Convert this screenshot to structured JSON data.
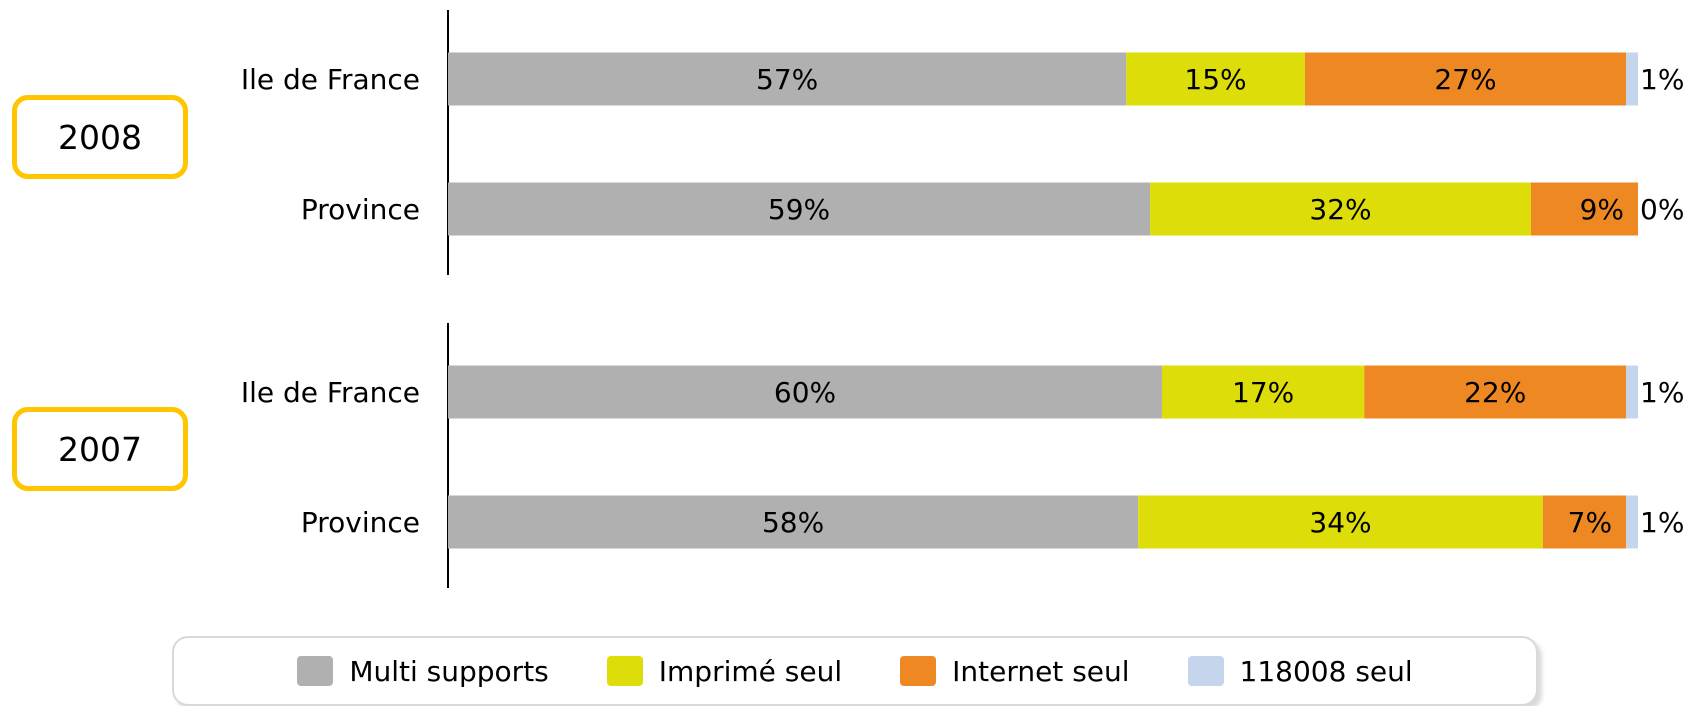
{
  "chart_data": [
    {
      "type": "bar",
      "orientation": "horizontal",
      "stacked": true,
      "group": "2008",
      "categories": [
        "Ile de France",
        "Province"
      ],
      "series": [
        {
          "name": "Multi supports",
          "values": [
            57,
            59
          ],
          "labels": [
            "57%",
            "59%"
          ]
        },
        {
          "name": "Imprimé seul",
          "values": [
            15,
            32
          ],
          "labels": [
            "15%",
            "32%"
          ]
        },
        {
          "name": "Internet seul",
          "values": [
            27,
            9
          ],
          "labels": [
            "27%",
            "9%"
          ]
        },
        {
          "name": "118008 seul",
          "values": [
            1,
            0
          ],
          "labels": [
            "1%",
            "0%"
          ]
        }
      ]
    },
    {
      "type": "bar",
      "orientation": "horizontal",
      "stacked": true,
      "group": "2007",
      "categories": [
        "Ile de France",
        "Province"
      ],
      "series": [
        {
          "name": "Multi supports",
          "values": [
            60,
            58
          ],
          "labels": [
            "60%",
            "58%"
          ]
        },
        {
          "name": "Imprimé seul",
          "values": [
            17,
            34
          ],
          "labels": [
            "17%",
            "34%"
          ]
        },
        {
          "name": "Internet seul",
          "values": [
            22,
            7
          ],
          "labels": [
            "22%",
            "7%"
          ]
        },
        {
          "name": "118008 seul",
          "values": [
            1,
            1
          ],
          "labels": [
            "1%",
            "1%"
          ]
        }
      ]
    }
  ],
  "years": [
    "2008",
    "2007"
  ],
  "legend": {
    "placement": "bottom",
    "items": [
      {
        "label": "Multi supports",
        "color": "#b0b0b0"
      },
      {
        "label": "Imprimé seul",
        "color": "#dddd0a"
      },
      {
        "label": "Internet seul",
        "color": "#ee8822"
      },
      {
        "label": "118008 seul",
        "color": "#c4d5ec"
      }
    ]
  },
  "colors": [
    "#b0b0b0",
    "#dddd0a",
    "#ee8822",
    "#c4d5ec"
  ]
}
